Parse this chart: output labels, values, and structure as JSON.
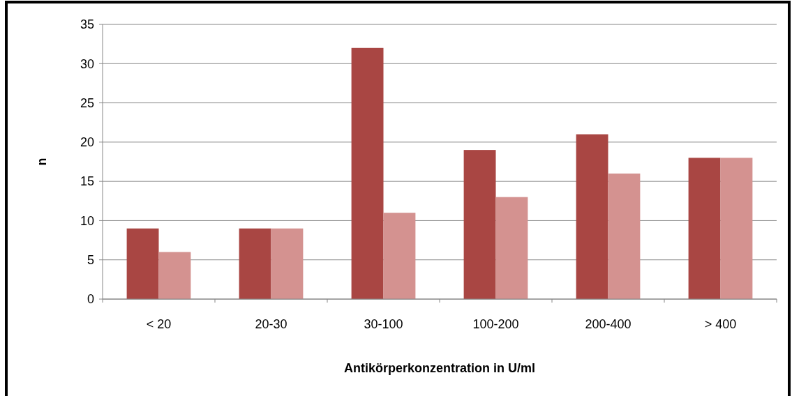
{
  "chart_data": {
    "type": "bar",
    "xlabel": "Antikörperkonzentration in U/ml",
    "ylabel": "n",
    "categories": [
      "< 20",
      "20-30",
      "30-100",
      "100-200",
      "200-400",
      "> 400"
    ],
    "series": [
      {
        "color": "#a94643",
        "values": [
          9,
          9,
          32,
          19,
          21,
          18
        ]
      },
      {
        "color": "#d49290",
        "values": [
          6,
          9,
          11,
          13,
          16,
          18
        ]
      }
    ],
    "ylim": [
      0,
      35
    ],
    "yticks": [
      0,
      5,
      10,
      15,
      20,
      25,
      30,
      35
    ],
    "grid": "y"
  }
}
